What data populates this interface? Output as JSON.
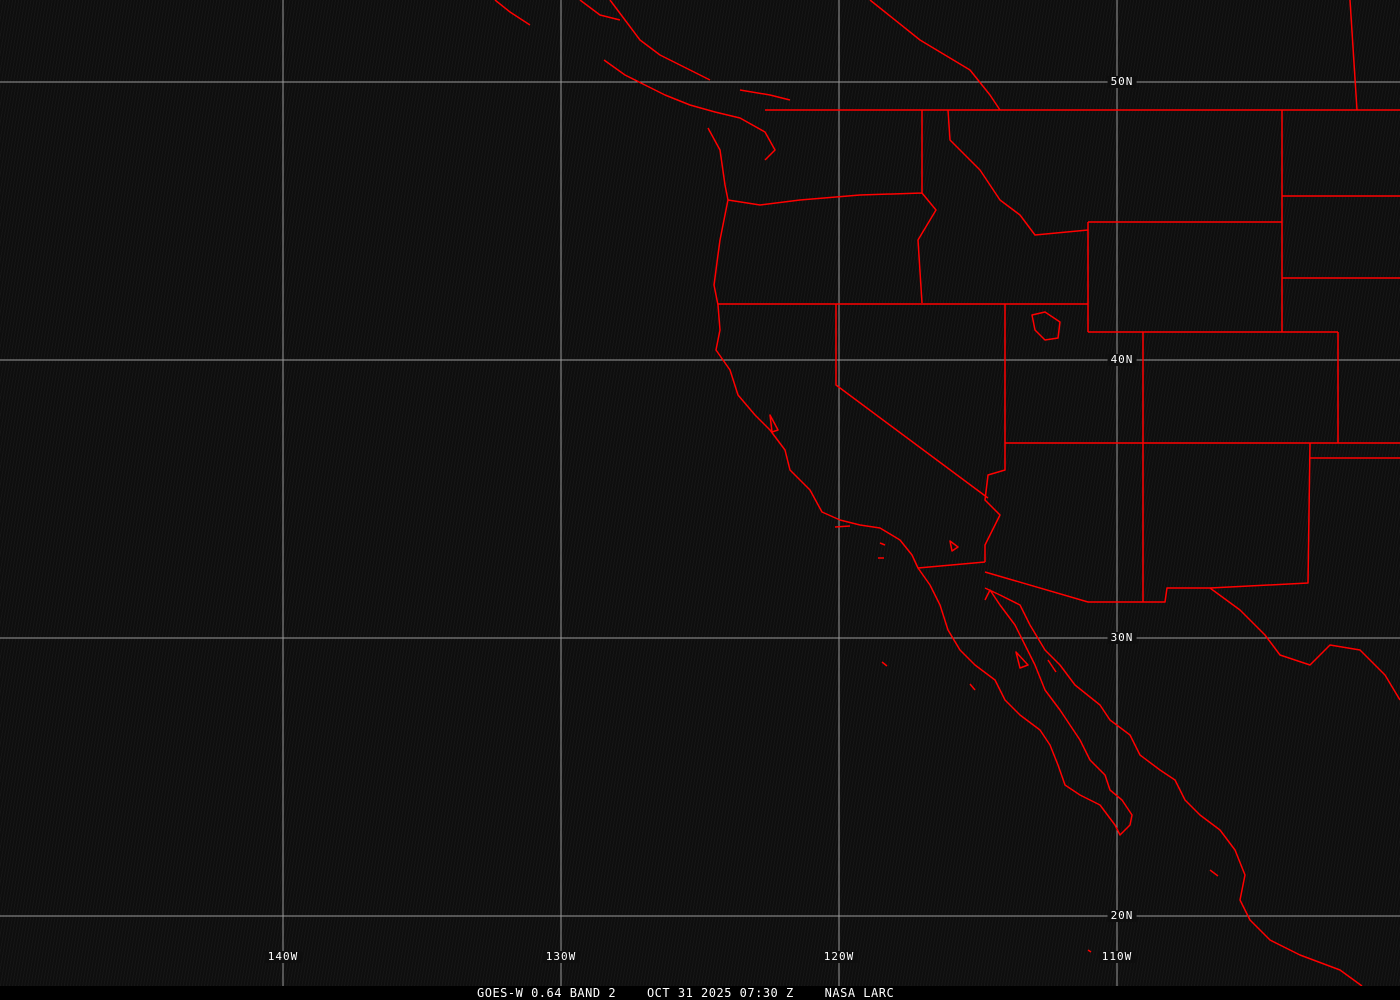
{
  "map": {
    "projection_grid": {
      "longitudes": [
        {
          "value": -140,
          "label": "140W"
        },
        {
          "value": -130,
          "label": "130W"
        },
        {
          "value": -120,
          "label": "120W"
        },
        {
          "value": -110,
          "label": "110W"
        }
      ],
      "latitudes": [
        {
          "value": 50,
          "label": "50N"
        },
        {
          "value": 40,
          "label": "40N"
        },
        {
          "value": 30,
          "label": "30N"
        },
        {
          "value": 20,
          "label": "20N"
        }
      ]
    },
    "colors": {
      "boundaries": "#ff0000",
      "grid": "#9a9a9a",
      "background": "#0e0e0e",
      "text": "#ffffff"
    }
  },
  "footer": {
    "satellite": "GOES-W 0.64 BAND 2",
    "datetime": "OCT 31 2025 07:30 Z",
    "source": "NASA LARC"
  }
}
